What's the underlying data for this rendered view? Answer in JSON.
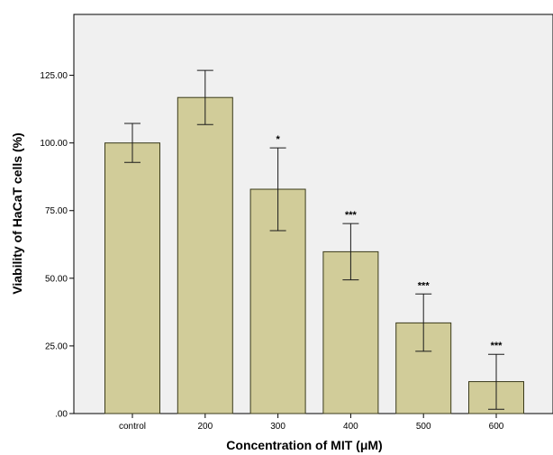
{
  "chart_data": {
    "type": "bar",
    "title": "",
    "xlabel": "Concentration of MIT (μM)",
    "ylabel": "Viability of HaCaT cells (%)",
    "categories": [
      "control",
      "200",
      "300",
      "400",
      "500",
      "600"
    ],
    "values": [
      100.0,
      116.8,
      82.9,
      59.8,
      33.5,
      11.8
    ],
    "error_bars": [
      {
        "low": 92.8,
        "high": 107.2
      },
      {
        "low": 106.8,
        "high": 126.8
      },
      {
        "low": 67.6,
        "high": 98.2
      },
      {
        "low": 49.4,
        "high": 70.2
      },
      {
        "low": 23.0,
        "high": 44.2
      },
      {
        "low": 1.6,
        "high": 21.9
      }
    ],
    "significance": [
      "",
      "",
      "*",
      "***",
      "***",
      "***"
    ],
    "yticks": [
      0,
      25,
      50,
      75,
      100,
      125
    ],
    "ytick_labels": [
      ".00",
      "25.00",
      "50.00",
      "75.00",
      "100.00",
      "125.00"
    ],
    "ylim": [
      0,
      147.5
    ],
    "grid": false,
    "legend": "none",
    "colors": {
      "bar_fill": "#d1cc99",
      "bar_stroke": "#3a3a1a",
      "plot_background": "#f0f0f0",
      "axis": "#000000"
    }
  }
}
